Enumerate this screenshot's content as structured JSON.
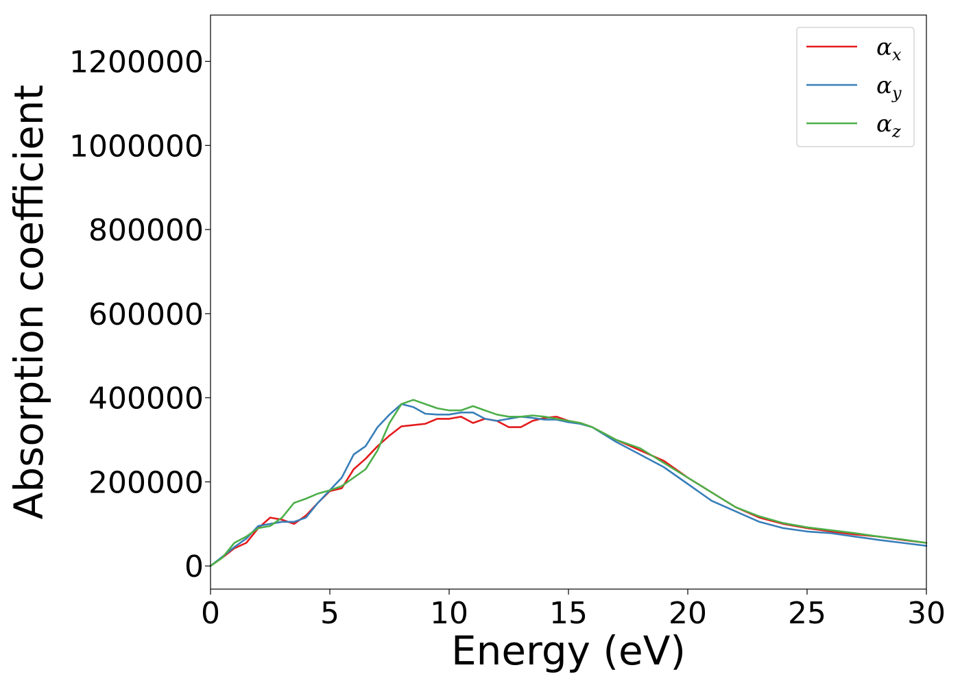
{
  "chart_data": {
    "type": "line",
    "title": "",
    "xlabel": "Energy (eV)",
    "ylabel": "Absorption coefficient",
    "xlim": [
      0,
      30
    ],
    "ylim": [
      -55000,
      1310000
    ],
    "xticks": [
      0,
      5,
      10,
      15,
      20,
      25,
      30
    ],
    "xtick_labels": [
      "0",
      "5",
      "10",
      "15",
      "20",
      "25",
      "30"
    ],
    "yticks": [
      0,
      200000,
      400000,
      600000,
      800000,
      1000000,
      1200000
    ],
    "ytick_labels": [
      "0",
      "200000",
      "400000",
      "600000",
      "800000",
      "1000000",
      "1200000"
    ],
    "grid": false,
    "legend_position": "top-right",
    "series": [
      {
        "name": "α",
        "subscript": "x",
        "color": "#e41a1c",
        "x": [
          0,
          0.5,
          1,
          1.5,
          2,
          2.5,
          3,
          3.5,
          4,
          4.5,
          5,
          5.5,
          6,
          6.5,
          7,
          7.5,
          8,
          8.5,
          9,
          9.5,
          10,
          10.5,
          11,
          11.5,
          12,
          12.5,
          13,
          13.5,
          14,
          14.5,
          15,
          15.5,
          16,
          17,
          18,
          19,
          20,
          21,
          22,
          23,
          24,
          25,
          26,
          27,
          28,
          29,
          30
        ],
        "y": [
          0,
          20000,
          42000,
          55000,
          90000,
          115000,
          110000,
          100000,
          120000,
          150000,
          178000,
          185000,
          230000,
          255000,
          285000,
          310000,
          332000,
          335000,
          338000,
          350000,
          350000,
          355000,
          340000,
          350000,
          345000,
          330000,
          330000,
          345000,
          352000,
          355000,
          345000,
          340000,
          330000,
          300000,
          275000,
          250000,
          210000,
          175000,
          140000,
          115000,
          100000,
          90000,
          82000,
          75000,
          70000,
          62000,
          55000
        ]
      },
      {
        "name": "α",
        "subscript": "y",
        "color": "#377eb8",
        "x": [
          0,
          0.5,
          1,
          1.5,
          2,
          2.5,
          3,
          3.5,
          4,
          4.5,
          5,
          5.5,
          6,
          6.5,
          7,
          7.5,
          8,
          8.5,
          9,
          9.5,
          10,
          10.5,
          11,
          11.5,
          12,
          12.5,
          13,
          13.5,
          14,
          14.5,
          15,
          15.5,
          16,
          17,
          18,
          19,
          20,
          21,
          22,
          23,
          24,
          25,
          26,
          27,
          28,
          29,
          30
        ],
        "y": [
          0,
          22000,
          45000,
          65000,
          95000,
          100000,
          105000,
          105000,
          115000,
          150000,
          180000,
          210000,
          265000,
          285000,
          330000,
          360000,
          385000,
          378000,
          362000,
          360000,
          360000,
          365000,
          365000,
          350000,
          345000,
          350000,
          355000,
          352000,
          348000,
          348000,
          342000,
          338000,
          330000,
          295000,
          265000,
          235000,
          195000,
          155000,
          130000,
          105000,
          90000,
          82000,
          78000,
          70000,
          62000,
          55000,
          48000
        ]
      },
      {
        "name": "α",
        "subscript": "z",
        "color": "#4daf4a",
        "x": [
          0,
          0.5,
          1,
          1.5,
          2,
          2.5,
          3,
          3.5,
          4,
          4.5,
          5,
          5.5,
          6,
          6.5,
          7,
          7.5,
          8,
          8.5,
          9,
          9.5,
          10,
          10.5,
          11,
          11.5,
          12,
          12.5,
          13,
          13.5,
          14,
          14.5,
          15,
          15.5,
          16,
          17,
          18,
          19,
          20,
          21,
          22,
          23,
          24,
          25,
          26,
          27,
          28,
          29,
          30
        ],
        "y": [
          0,
          20000,
          55000,
          70000,
          90000,
          95000,
          115000,
          150000,
          160000,
          172000,
          180000,
          190000,
          210000,
          230000,
          275000,
          340000,
          385000,
          395000,
          385000,
          375000,
          370000,
          370000,
          380000,
          370000,
          360000,
          355000,
          355000,
          358000,
          355000,
          350000,
          345000,
          340000,
          330000,
          300000,
          280000,
          245000,
          210000,
          175000,
          140000,
          118000,
          102000,
          92000,
          85000,
          78000,
          70000,
          63000,
          55000
        ]
      }
    ]
  }
}
